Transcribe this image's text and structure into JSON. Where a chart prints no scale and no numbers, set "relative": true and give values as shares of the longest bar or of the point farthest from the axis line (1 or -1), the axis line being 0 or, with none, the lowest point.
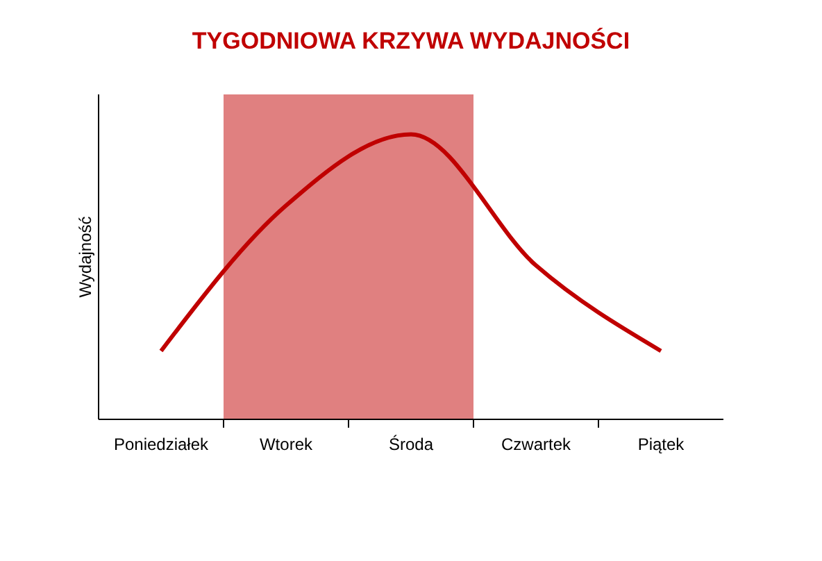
{
  "chart_data": {
    "type": "line",
    "title": "TYGODNIOWA KRZYWA WYDAJNOŚCI",
    "ylabel": "Wydajność",
    "relative": true,
    "categories": [
      "Poniedziałek",
      "Wtorek",
      "Środa",
      "Czwartek",
      "Piątek"
    ],
    "series": [
      {
        "color": "#c00000",
        "values": [
          0.24,
          0.75,
          1,
          0.54,
          0.24
        ]
      }
    ],
    "bands": [
      {
        "axis": "x",
        "from": "Wtorek",
        "to": "Środa",
        "color": "#e08080"
      }
    ],
    "marker": "none"
  }
}
